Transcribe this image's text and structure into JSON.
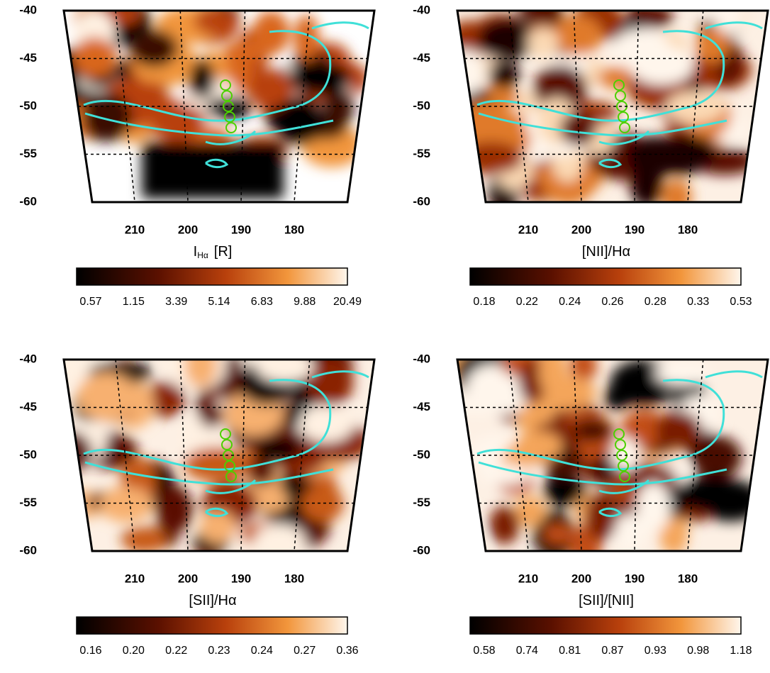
{
  "chart_data": [
    {
      "type": "heatmap",
      "xlabel": "I",
      "xlabel_sub": "Hα",
      "xlabel_suffix": "[R]",
      "ylim": [
        -40,
        -60
      ],
      "yticks": [
        -40,
        -45,
        -50,
        -55,
        -60
      ],
      "xlim": [
        218,
        170
      ],
      "xticks": [
        210,
        200,
        190,
        180
      ],
      "colorbar_ticks": [
        0.57,
        1.15,
        3.39,
        5.14,
        6.83,
        9.88,
        20.49
      ]
    },
    {
      "type": "heatmap",
      "xlabel": "[NII]/Hα",
      "ylim": [
        -40,
        -60
      ],
      "yticks": [
        -40,
        -45,
        -50,
        -55,
        -60
      ],
      "xlim": [
        218,
        170
      ],
      "xticks": [
        210,
        200,
        190,
        180
      ],
      "colorbar_ticks": [
        0.18,
        0.22,
        0.24,
        0.26,
        0.28,
        0.33,
        0.53
      ]
    },
    {
      "type": "heatmap",
      "xlabel": "[SII]/Hα",
      "ylim": [
        -40,
        -60
      ],
      "yticks": [
        -40,
        -45,
        -50,
        -55,
        -60
      ],
      "xlim": [
        218,
        170
      ],
      "xticks": [
        210,
        200,
        190,
        180
      ],
      "colorbar_ticks": [
        0.16,
        {
          "value": 0.2,
          "label": "0.20"
        },
        0.22,
        0.23,
        0.24,
        0.27,
        0.36
      ]
    },
    {
      "type": "heatmap",
      "xlabel": "[SII]/[NII]",
      "ylim": [
        -40,
        -60
      ],
      "yticks": [
        -40,
        -45,
        -50,
        -55,
        -60
      ],
      "xlim": [
        218,
        170
      ],
      "xticks": [
        210,
        200,
        190,
        180
      ],
      "colorbar_ticks": [
        0.58,
        0.74,
        0.81,
        0.87,
        0.93,
        0.98,
        1.18
      ]
    }
  ]
}
